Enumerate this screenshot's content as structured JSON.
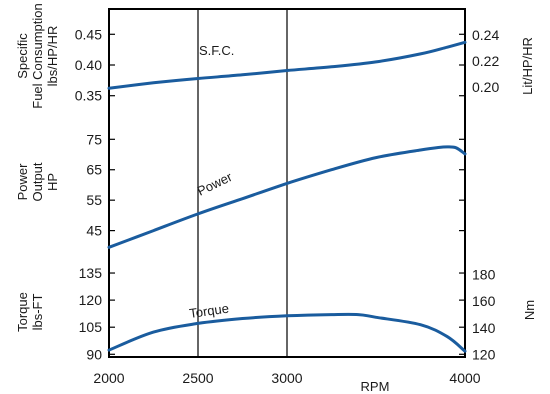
{
  "chart_data": [
    {
      "type": "line",
      "panel": "Specific Fuel Consumption",
      "ylabel_lines": [
        "Specific",
        "Fuel Consumption",
        "lbs/HP/HR"
      ],
      "y2label": "Lit/HP/HR",
      "yticks": [
        0.35,
        0.4,
        0.45
      ],
      "ytick_labels": [
        "0.35",
        "0.40",
        "0.45"
      ],
      "ylim": [
        0.33,
        0.47
      ],
      "y2ticks": [
        0.2,
        0.22,
        0.24
      ],
      "y2tick_labels": [
        "0.20",
        "0.22",
        "0.24"
      ],
      "y2lim": [
        0.184,
        0.25
      ],
      "annotation": "S.F.C.",
      "series": [
        {
          "x": [
            2000,
            2250,
            2500,
            2750,
            3000,
            3250,
            3500,
            3750,
            3900,
            4000
          ],
          "values": [
            0.362,
            0.371,
            0.378,
            0.384,
            0.391,
            0.397,
            0.405,
            0.418,
            0.429,
            0.437
          ]
        }
      ]
    },
    {
      "type": "line",
      "panel": "Power Output",
      "ylabel_lines": [
        "Power",
        "Output",
        "HP"
      ],
      "yticks": [
        45,
        55,
        65,
        75
      ],
      "ytick_labels": [
        "45",
        "55",
        "65",
        "75"
      ],
      "ylim": [
        36,
        82
      ],
      "annotation": "Power",
      "series": [
        {
          "x": [
            2000,
            2250,
            2500,
            2750,
            3000,
            3250,
            3500,
            3750,
            3850,
            3900,
            3950,
            4000
          ],
          "values": [
            39.5,
            45,
            50.5,
            55.5,
            60.5,
            65,
            69,
            71.5,
            72.3,
            72.5,
            72.2,
            70.2
          ]
        }
      ]
    },
    {
      "type": "line",
      "panel": "Torque",
      "ylabel_lines": [
        "Torque",
        "lbs-FT"
      ],
      "y2label": "Nm",
      "yticks": [
        90,
        105,
        120,
        135
      ],
      "ytick_labels": [
        "90",
        "105",
        "120",
        "135"
      ],
      "ylim": [
        88.5,
        140
      ],
      "y2ticks": [
        120,
        140,
        160,
        180
      ],
      "y2tick_labels": [
        "120",
        "140",
        "160",
        "180"
      ],
      "y2lim": [
        118,
        188
      ],
      "annotation": "Torque",
      "series": [
        {
          "x": [
            2000,
            2250,
            2500,
            2750,
            3000,
            3250,
            3400,
            3500,
            3750,
            3900,
            4000
          ],
          "values": [
            92.3,
            102.3,
            107.1,
            109.8,
            111.3,
            112.0,
            112.0,
            110.5,
            106.4,
            99.8,
            91.7
          ]
        }
      ]
    }
  ],
  "x_axis": {
    "xlabel": "RPM",
    "ticks": [
      2000,
      2500,
      3000,
      4000
    ],
    "tick_labels": [
      "2000",
      "2500",
      "3000",
      "4000"
    ],
    "xlim": [
      2000,
      4000
    ],
    "gridlines": [
      2500,
      3000
    ]
  },
  "colors": {
    "line": "#1a5c9e",
    "axis": "#000000"
  }
}
